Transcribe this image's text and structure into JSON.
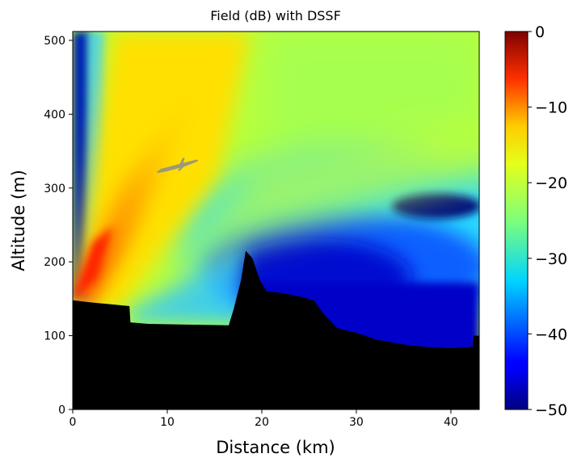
{
  "chart_data": {
    "type": "heatmap",
    "title": "Field (dB) with DSSF",
    "xlabel": "Distance (km)",
    "ylabel": "Altitude (m)",
    "xlim": [
      0,
      43
    ],
    "ylim": [
      0,
      512
    ],
    "x_ticks": [
      0,
      10,
      20,
      30,
      40
    ],
    "y_ticks": [
      0,
      100,
      200,
      300,
      400,
      500
    ],
    "colorbar": {
      "colormap": "jet",
      "range": [
        -50,
        0
      ],
      "ticks": [
        0,
        -10,
        -20,
        -30,
        -40,
        -50
      ],
      "tick_labels": [
        "0",
        "−10",
        "−20",
        "−30",
        "−40",
        "−50"
      ]
    },
    "source": {
      "x_km": 0,
      "altitude_m": 150
    },
    "annotations": [
      {
        "type": "aircraft-icon",
        "x_km": 11,
        "altitude_m": 330,
        "color": "#9a9a78"
      }
    ],
    "terrain_profile": [
      {
        "x": 0,
        "alt": 148
      },
      {
        "x": 2,
        "alt": 145
      },
      {
        "x": 4.5,
        "alt": 142
      },
      {
        "x": 6,
        "alt": 140
      },
      {
        "x": 6.1,
        "alt": 118
      },
      {
        "x": 8,
        "alt": 116
      },
      {
        "x": 12,
        "alt": 115
      },
      {
        "x": 16.5,
        "alt": 114
      },
      {
        "x": 17,
        "alt": 135
      },
      {
        "x": 17.8,
        "alt": 175
      },
      {
        "x": 18.3,
        "alt": 215
      },
      {
        "x": 19,
        "alt": 205
      },
      {
        "x": 19.8,
        "alt": 175
      },
      {
        "x": 20.5,
        "alt": 160
      },
      {
        "x": 22,
        "alt": 158
      },
      {
        "x": 24,
        "alt": 153
      },
      {
        "x": 25.5,
        "alt": 148
      },
      {
        "x": 26.5,
        "alt": 130
      },
      {
        "x": 28,
        "alt": 110
      },
      {
        "x": 30,
        "alt": 104
      },
      {
        "x": 32,
        "alt": 95
      },
      {
        "x": 35,
        "alt": 88
      },
      {
        "x": 37,
        "alt": 85
      },
      {
        "x": 40,
        "alt": 83
      },
      {
        "x": 42.3,
        "alt": 85
      },
      {
        "x": 42.4,
        "alt": 100
      },
      {
        "x": 43,
        "alt": 100
      }
    ],
    "grid": false
  }
}
